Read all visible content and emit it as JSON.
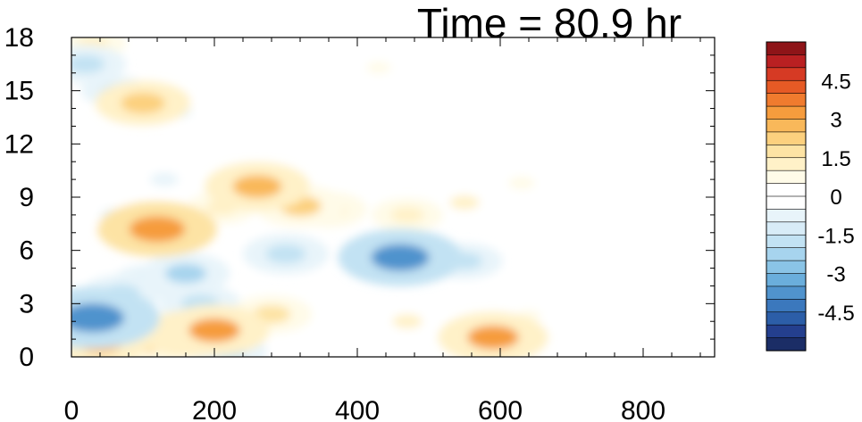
{
  "chart_data": {
    "type": "heatmap",
    "title": "Time = 80.9 hr",
    "xlabel": "",
    "ylabel": "",
    "xlim": [
      0,
      900
    ],
    "ylim": [
      0,
      18
    ],
    "x_ticks": [
      "0",
      "200",
      "400",
      "600",
      "800"
    ],
    "y_ticks": [
      "0",
      "3",
      "6",
      "9",
      "12",
      "15",
      "18"
    ],
    "colorbar": {
      "min": -6,
      "max": 6,
      "step": 0.5,
      "labels": [
        "4.5",
        "3",
        "1.5",
        "0",
        "-1.5",
        "-3",
        "-4.5"
      ],
      "colors": [
        "#1b2d66",
        "#243f8e",
        "#2c5ea8",
        "#3b78bd",
        "#5093cd",
        "#6aaedc",
        "#8ac4e6",
        "#a7d4ee",
        "#c2e2f3",
        "#d8ecf7",
        "#e8f4fa",
        "#ffffff",
        "#ffffff",
        "#fffbe8",
        "#fff1c8",
        "#fde3a4",
        "#fcd07e",
        "#f9b85a",
        "#f69c3d",
        "#f07b2e",
        "#e65a25",
        "#d63a24",
        "#b92022",
        "#8e1418"
      ]
    },
    "features": [
      {
        "x": 460,
        "y": 5.6,
        "value": -3.6
      },
      {
        "x": 300,
        "y": 5.8,
        "value": -2.0
      },
      {
        "x": 550,
        "y": 5.4,
        "value": -1.6
      },
      {
        "x": 160,
        "y": 4.7,
        "value": -2.1
      },
      {
        "x": 180,
        "y": 3.0,
        "value": -1.8
      },
      {
        "x": 110,
        "y": 4.2,
        "value": -1.6
      },
      {
        "x": 30,
        "y": 2.2,
        "value": -4.0
      },
      {
        "x": 70,
        "y": 3.6,
        "value": -1.7
      },
      {
        "x": 220,
        "y": 0.3,
        "value": -1.6
      },
      {
        "x": 60,
        "y": 8.0,
        "value": -1.0
      },
      {
        "x": 130,
        "y": 10.0,
        "value": -1.0
      },
      {
        "x": 20,
        "y": 16.5,
        "value": -1.8
      },
      {
        "x": 60,
        "y": 15.0,
        "value": -1.2
      },
      {
        "x": 150,
        "y": 13.8,
        "value": -0.8
      },
      {
        "x": 780,
        "y": 14.5,
        "value": -0.5
      },
      {
        "x": 40,
        "y": 0.8,
        "value": 2.5
      },
      {
        "x": 110,
        "y": 0.8,
        "value": 2.2
      },
      {
        "x": 165,
        "y": 1.3,
        "value": 2.6
      },
      {
        "x": 200,
        "y": 1.5,
        "value": 3.0
      },
      {
        "x": 120,
        "y": 7.2,
        "value": 3.4
      },
      {
        "x": 260,
        "y": 9.6,
        "value": 2.8
      },
      {
        "x": 320,
        "y": 8.5,
        "value": 2.2
      },
      {
        "x": 360,
        "y": 8.3,
        "value": 1.6
      },
      {
        "x": 470,
        "y": 8.0,
        "value": 1.4
      },
      {
        "x": 550,
        "y": 8.7,
        "value": 1.1
      },
      {
        "x": 590,
        "y": 1.1,
        "value": 3.0
      },
      {
        "x": 280,
        "y": 2.4,
        "value": 1.8
      },
      {
        "x": 470,
        "y": 2.0,
        "value": 1.1
      },
      {
        "x": 640,
        "y": 2.3,
        "value": 0.6
      },
      {
        "x": 100,
        "y": 14.3,
        "value": 2.4
      },
      {
        "x": 30,
        "y": 17.7,
        "value": 1.2
      },
      {
        "x": 630,
        "y": 9.8,
        "value": 0.8
      },
      {
        "x": 430,
        "y": 16.3,
        "value": 0.6
      },
      {
        "x": 210,
        "y": 8.4,
        "value": 1.3
      }
    ]
  }
}
